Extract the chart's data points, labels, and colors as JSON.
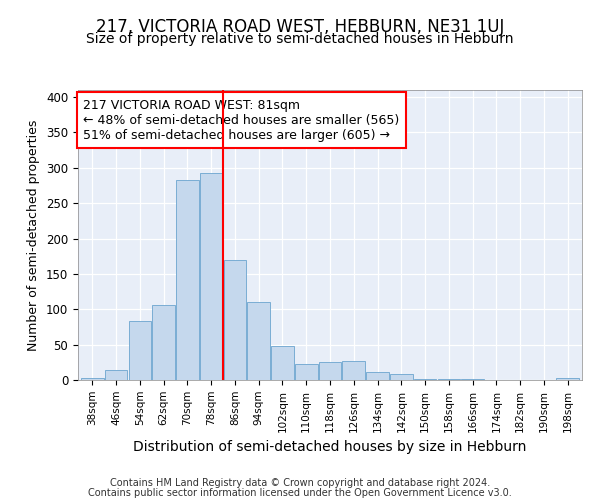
{
  "title": "217, VICTORIA ROAD WEST, HEBBURN, NE31 1UJ",
  "subtitle": "Size of property relative to semi-detached houses in Hebburn",
  "xlabel": "Distribution of semi-detached houses by size in Hebburn",
  "ylabel": "Number of semi-detached properties",
  "categories": [
    "38sqm",
    "46sqm",
    "54sqm",
    "62sqm",
    "70sqm",
    "78sqm",
    "86sqm",
    "94sqm",
    "102sqm",
    "110sqm",
    "118sqm",
    "126sqm",
    "134sqm",
    "142sqm",
    "150sqm",
    "158sqm",
    "166sqm",
    "174sqm",
    "182sqm",
    "190sqm",
    "198sqm"
  ],
  "values": [
    3,
    14,
    84,
    106,
    283,
    293,
    170,
    110,
    48,
    22,
    25,
    27,
    12,
    9,
    2,
    1,
    1,
    0,
    0,
    0,
    3
  ],
  "bar_color": "#c5d8ed",
  "bar_edge_color": "#7aadd4",
  "vline_x": 5.5,
  "vline_color": "red",
  "annotation_line1": "217 VICTORIA ROAD WEST: 81sqm",
  "annotation_line2": "← 48% of semi-detached houses are smaller (565)",
  "annotation_line3": "51% of semi-detached houses are larger (605) →",
  "annotation_box_color": "white",
  "annotation_box_edge": "red",
  "ylim": [
    0,
    410
  ],
  "yticks": [
    0,
    50,
    100,
    150,
    200,
    250,
    300,
    350,
    400
  ],
  "bg_color": "#e8eef8",
  "footer_line1": "Contains HM Land Registry data © Crown copyright and database right 2024.",
  "footer_line2": "Contains public sector information licensed under the Open Government Licence v3.0.",
  "title_fontsize": 12,
  "subtitle_fontsize": 10,
  "xlabel_fontsize": 10,
  "ylabel_fontsize": 9,
  "annotation_fontsize": 9
}
